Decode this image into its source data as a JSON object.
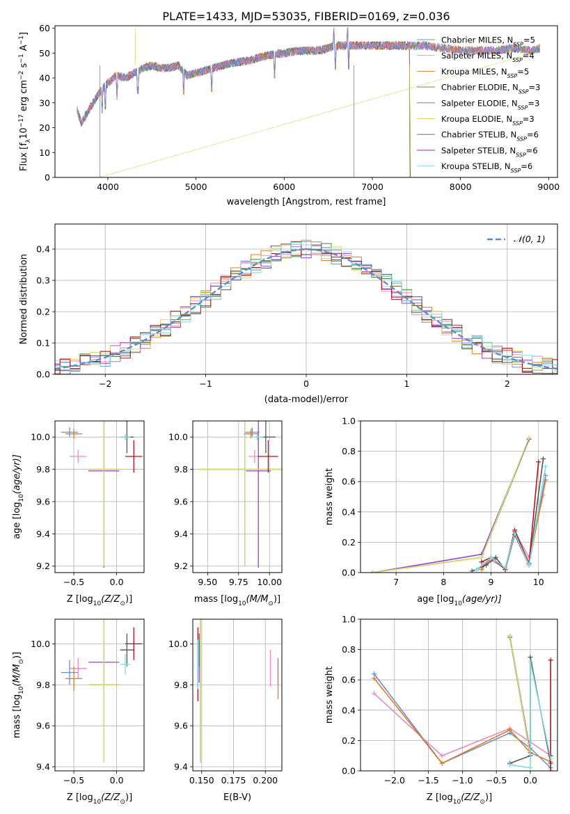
{
  "figure": {
    "title": "PLATE=1433, MJD=53035, FIBERID=0169, z=0.036"
  },
  "colors": {
    "Chabrier MILES": "#6b8fd6",
    "Salpeter MILES": "#e58ac4",
    "Kroupa MILES": "#e07b22",
    "Chabrier ELODIE": "#3a8a3a",
    "Salpeter ELODIE": "#a33bd1",
    "Kroupa ELODIE": "#cfe06a",
    "Chabrier STELIB": "#555555",
    "Salpeter STELIB": "#b0121d",
    "Kroupa STELIB": "#7fdbe0",
    "gaussian": "#5b8bd6"
  },
  "chart_data": [
    {
      "id": "spectrum",
      "type": "line",
      "xlabel": "wavelength [Angstrom, rest frame]",
      "ylabel": "Flux [f",
      "ylabel_sub": "λ",
      "ylabel_rest": "10",
      "ylabel_exp1": "−17",
      "ylabel_rest2": " erg cm",
      "ylabel_exp2": "−2",
      "ylabel_rest3": " s",
      "ylabel_exp3": "−1",
      "ylabel_rest4": " A",
      "ylabel_exp4": "−1",
      "ylabel_end": "]",
      "xlim": [
        3400,
        9100
      ],
      "ylim": [
        0,
        61
      ],
      "xticks": [
        "4000",
        "5000",
        "6000",
        "7000",
        "8000",
        "9000"
      ],
      "xtick_values": [
        4000,
        5000,
        6000,
        7000,
        8000,
        9000
      ],
      "yticks": [
        "0",
        "10",
        "20",
        "30",
        "40",
        "50",
        "60"
      ],
      "ytick_values": [
        0,
        10,
        20,
        30,
        40,
        50,
        60
      ],
      "continuum_x": [
        3650,
        3700,
        3800,
        3900,
        4000,
        4100,
        4200,
        4300,
        4400,
        4500,
        4600,
        4700,
        4800,
        4900,
        5000,
        5200,
        5400,
        5600,
        5800,
        6000,
        6200,
        6400,
        6600,
        6800,
        7000,
        7200,
        7400,
        7600,
        7800,
        8000,
        8200,
        8400,
        8600,
        8800,
        8900
      ],
      "continuum_y": [
        27,
        22,
        28,
        34,
        38,
        41,
        40,
        42,
        44,
        45,
        44,
        44,
        45,
        41,
        42,
        44,
        46,
        47,
        49,
        50,
        51,
        51,
        53,
        53,
        53,
        53,
        53,
        53,
        52,
        51,
        51,
        51,
        52,
        51,
        52
      ],
      "legend": [
        {
          "label": "Chabrier MILES",
          "sub": "5"
        },
        {
          "label": "Salpeter MILES",
          "sub": "4"
        },
        {
          "label": "Kroupa MILES",
          "sub": "5"
        },
        {
          "label": "Chabrier ELODIE",
          "sub": "3"
        },
        {
          "label": "Salpeter ELODIE",
          "sub": "3"
        },
        {
          "label": "Kroupa ELODIE",
          "sub": "3"
        },
        {
          "label": "Chabrier STELIB",
          "sub": "6"
        },
        {
          "label": "Salpeter STELIB",
          "sub": "6"
        },
        {
          "label": "Kroupa STELIB",
          "sub": "6"
        }
      ],
      "legend_prefix": "N",
      "legend_subscript": "SSP",
      "grid": false
    },
    {
      "id": "residual_hist",
      "type": "line",
      "xlabel": "(data-model)/error",
      "ylabel": "Normed distribution",
      "xlim": [
        -2.5,
        2.5
      ],
      "ylim": [
        0,
        0.48
      ],
      "xticks": [
        "−2",
        "−1",
        "0",
        "1",
        "2"
      ],
      "xtick_values": [
        -2,
        -1,
        0,
        1,
        2
      ],
      "yticks": [
        "0.0",
        "0.1",
        "0.2",
        "0.3",
        "0.4"
      ],
      "ytick_values": [
        0,
        0.1,
        0.2,
        0.3,
        0.4
      ],
      "legend": [
        "𝒩(0, 1)"
      ],
      "grid": true,
      "bin_width": 0.1
    },
    {
      "id": "age_vs_Z",
      "type": "scatter",
      "xlabel": "Z [log",
      "xlabel_sub": "10",
      "xlabel_end": "(Z/Z",
      "xlabel_tail": "⊙",
      "xlabel_close": ")]",
      "ylabel": "age  [log",
      "ylabel_sub": "10",
      "ylabel_end": "(age/yr)]",
      "xlim": [
        -0.72,
        0.32
      ],
      "ylim": [
        9.16,
        10.1
      ],
      "xticks": [
        "−0.5",
        "0.0"
      ],
      "xtick_values": [
        -0.5,
        0.0
      ],
      "yticks": [
        "9.2",
        "9.4",
        "9.6",
        "9.8",
        "10.0"
      ],
      "ytick_values": [
        9.2,
        9.4,
        9.6,
        9.8,
        10.0
      ],
      "points": [
        {
          "model": "Chabrier MILES",
          "x": -0.55,
          "xerr": 0.1,
          "y": 10.03,
          "yerr": 0.03
        },
        {
          "model": "Salpeter MILES",
          "x": -0.45,
          "xerr": 0.1,
          "y": 9.88,
          "yerr": 0.04
        },
        {
          "model": "Kroupa MILES",
          "x": -0.5,
          "xerr": 0.1,
          "y": 10.02,
          "yerr": 0.03
        },
        {
          "model": "Chabrier ELODIE",
          "x": -0.15,
          "xerr": 0.18,
          "y": 9.8,
          "yerr": 0.6
        },
        {
          "model": "Salpeter ELODIE",
          "x": -0.15,
          "xerr": 0.18,
          "y": 9.79,
          "yerr": 0.6
        },
        {
          "model": "Kroupa ELODIE",
          "x": -0.15,
          "xerr": 0.18,
          "y": 9.8,
          "yerr": 0.6
        },
        {
          "model": "Chabrier STELIB",
          "x": 0.12,
          "xerr": 0.08,
          "y": 10.0,
          "yerr": 0.1
        },
        {
          "model": "Salpeter STELIB",
          "x": 0.2,
          "xerr": 0.1,
          "y": 9.88,
          "yerr": 0.1
        },
        {
          "model": "Kroupa STELIB",
          "x": 0.1,
          "xerr": 0.06,
          "y": 10.0,
          "yerr": 0.02
        }
      ],
      "grid": true
    },
    {
      "id": "age_vs_mass",
      "type": "scatter",
      "xlabel": "mass [log",
      "xlabel_sub": "10",
      "xlabel_end": "(M/M",
      "xlabel_tail": "⊙",
      "xlabel_close": ")]",
      "xlim": [
        9.38,
        10.1
      ],
      "ylim": [
        9.16,
        10.1
      ],
      "xticks": [
        "9.50",
        "9.75",
        "10.00"
      ],
      "xtick_values": [
        9.5,
        9.75,
        10.0
      ],
      "yticks": [
        "9.2",
        "9.4",
        "9.6",
        "9.8",
        "10.0"
      ],
      "ytick_values": [
        9.2,
        9.4,
        9.6,
        9.8,
        10.0
      ],
      "points": [
        {
          "model": "Chabrier MILES",
          "x": 9.86,
          "xerr": 0.06,
          "y": 10.03,
          "yerr": 0.03
        },
        {
          "model": "Salpeter MILES",
          "x": 9.88,
          "xerr": 0.05,
          "y": 9.88,
          "yerr": 0.04
        },
        {
          "model": "Kroupa MILES",
          "x": 9.85,
          "xerr": 0.06,
          "y": 10.02,
          "yerr": 0.03
        },
        {
          "model": "Chabrier ELODIE",
          "x": 9.8,
          "xerr": 0.38,
          "y": 9.8,
          "yerr": 0.6
        },
        {
          "model": "Salpeter ELODIE",
          "x": 9.91,
          "xerr": 0.1,
          "y": 9.79,
          "yerr": 0.6
        },
        {
          "model": "Kroupa ELODIE",
          "x": 9.8,
          "xerr": 0.38,
          "y": 9.8,
          "yerr": 0.6
        },
        {
          "model": "Chabrier STELIB",
          "x": 9.97,
          "xerr": 0.08,
          "y": 10.0,
          "yerr": 0.1
        },
        {
          "model": "Salpeter STELIB",
          "x": 9.99,
          "xerr": 0.08,
          "y": 9.88,
          "yerr": 0.1
        },
        {
          "model": "Kroupa STELIB",
          "x": 9.9,
          "xerr": 0.05,
          "y": 10.0,
          "yerr": 0.02
        }
      ],
      "grid": true
    },
    {
      "id": "weight_vs_age",
      "type": "line",
      "xlabel": "age  [log",
      "xlabel_sub": "10",
      "xlabel_end": "(age/yr)]",
      "ylabel": "mass weight",
      "xlim": [
        6.25,
        10.4
      ],
      "ylim": [
        0,
        1.0
      ],
      "xticks": [
        "7",
        "8",
        "9",
        "10"
      ],
      "xtick_values": [
        7,
        8,
        9,
        10
      ],
      "yticks": [
        "0.0",
        "0.2",
        "0.4",
        "0.6",
        "0.8",
        "1.0"
      ],
      "ytick_values": [
        0,
        0.2,
        0.4,
        0.6,
        0.8,
        1.0
      ],
      "series": [
        {
          "name": "Chabrier MILES",
          "x": [
            8.7,
            9.0,
            9.3,
            9.5,
            9.8,
            10.15
          ],
          "y": [
            0.02,
            0.1,
            0.03,
            0.25,
            0.05,
            0.64
          ]
        },
        {
          "name": "Salpeter MILES",
          "x": [
            8.7,
            9.0,
            9.3,
            9.5,
            9.8,
            10.1
          ],
          "y": [
            0.02,
            0.08,
            0.03,
            0.27,
            0.1,
            0.51
          ]
        },
        {
          "name": "Kroupa MILES",
          "x": [
            8.8,
            9.0,
            9.3,
            9.5,
            9.8,
            10.15
          ],
          "y": [
            0.02,
            0.1,
            0.03,
            0.27,
            0.06,
            0.61
          ]
        },
        {
          "name": "Chabrier ELODIE",
          "x": [
            6.5,
            8.8,
            9.8
          ],
          "y": [
            0.0,
            0.1,
            0.88
          ]
        },
        {
          "name": "Salpeter ELODIE",
          "x": [
            6.5,
            8.8,
            9.8
          ],
          "y": [
            0.0,
            0.12,
            0.88
          ]
        },
        {
          "name": "Kroupa ELODIE",
          "x": [
            6.5,
            8.8,
            9.8
          ],
          "y": [
            0.0,
            0.1,
            0.89
          ]
        },
        {
          "name": "Chabrier STELIB",
          "x": [
            8.6,
            8.9,
            9.1,
            9.3,
            9.5,
            9.8,
            10.1
          ],
          "y": [
            0.01,
            0.05,
            0.1,
            0.02,
            0.25,
            0.05,
            0.75
          ]
        },
        {
          "name": "Salpeter STELIB",
          "x": [
            8.8,
            9.0,
            9.3,
            9.5,
            9.8,
            10.0
          ],
          "y": [
            0.07,
            0.1,
            0.02,
            0.28,
            0.06,
            0.73
          ]
        },
        {
          "name": "Kroupa STELIB",
          "x": [
            8.7,
            9.0,
            9.3,
            9.5,
            9.8,
            10.15
          ],
          "y": [
            0.02,
            0.1,
            0.03,
            0.26,
            0.05,
            0.7
          ]
        }
      ],
      "grid": true
    },
    {
      "id": "mass_vs_Z",
      "type": "scatter",
      "xlabel": "Z [log",
      "xlabel_sub": "10",
      "xlabel_end": "(Z/Z",
      "xlabel_tail": "⊙",
      "xlabel_close": ")]",
      "ylabel": "mass [log",
      "ylabel_sub": "10",
      "ylabel_end": "(M/M",
      "ylabel_tail": "⊙",
      "ylabel_close": ")]",
      "xlim": [
        -0.72,
        0.32
      ],
      "ylim": [
        9.38,
        10.12
      ],
      "xticks": [
        "−0.5",
        "0.0"
      ],
      "xtick_values": [
        -0.5,
        0.0
      ],
      "yticks": [
        "9.4",
        "9.6",
        "9.8",
        "10.0"
      ],
      "ytick_values": [
        9.4,
        9.6,
        9.8,
        10.0
      ],
      "points": [
        {
          "model": "Chabrier MILES",
          "x": -0.55,
          "xerr": 0.1,
          "y": 9.86,
          "yerr": 0.06
        },
        {
          "model": "Salpeter MILES",
          "x": -0.45,
          "xerr": 0.1,
          "y": 9.88,
          "yerr": 0.05
        },
        {
          "model": "Kroupa MILES",
          "x": -0.5,
          "xerr": 0.1,
          "y": 9.83,
          "yerr": 0.06
        },
        {
          "model": "Chabrier ELODIE",
          "x": -0.15,
          "xerr": 0.18,
          "y": 9.8,
          "yerr": 0.38
        },
        {
          "model": "Salpeter ELODIE",
          "x": -0.15,
          "xerr": 0.18,
          "y": 9.91,
          "yerr": 0.1
        },
        {
          "model": "Kroupa ELODIE",
          "x": -0.15,
          "xerr": 0.18,
          "y": 9.8,
          "yerr": 0.38
        },
        {
          "model": "Chabrier STELIB",
          "x": 0.12,
          "xerr": 0.08,
          "y": 9.97,
          "yerr": 0.08
        },
        {
          "model": "Salpeter STELIB",
          "x": 0.2,
          "xerr": 0.1,
          "y": 10.0,
          "yerr": 0.08
        },
        {
          "model": "Kroupa STELIB",
          "x": 0.1,
          "xerr": 0.06,
          "y": 9.9,
          "yerr": 0.05
        }
      ],
      "grid": true
    },
    {
      "id": "mass_vs_ebv",
      "type": "scatter",
      "xlabel": "E(B-V)",
      "xlim": [
        0.143,
        0.213
      ],
      "ylim": [
        9.38,
        10.12
      ],
      "xticks": [
        "0.150",
        "0.175",
        "0.200"
      ],
      "xtick_values": [
        0.15,
        0.175,
        0.2
      ],
      "yticks": [
        "9.4",
        "9.6",
        "9.8",
        "10.0"
      ],
      "ytick_values": [
        9.4,
        9.6,
        9.8,
        10.0
      ],
      "points": [
        {
          "model": "Chabrier MILES",
          "x": 0.21,
          "xerr": 0,
          "y": 9.86,
          "yerr": 0.06
        },
        {
          "model": "Salpeter MILES",
          "x": 0.204,
          "xerr": 0,
          "y": 9.88,
          "yerr": 0.09
        },
        {
          "model": "Kroupa MILES",
          "x": 0.21,
          "xerr": 0,
          "y": 9.83,
          "yerr": 0.1
        },
        {
          "model": "Chabrier ELODIE",
          "x": 0.149,
          "xerr": 0,
          "y": 9.8,
          "yerr": 0.38
        },
        {
          "model": "Salpeter ELODIE",
          "x": 0.148,
          "xerr": 0,
          "y": 9.91,
          "yerr": 0.1
        },
        {
          "model": "Kroupa ELODIE",
          "x": 0.149,
          "xerr": 0,
          "y": 9.8,
          "yerr": 0.38
        },
        {
          "model": "Chabrier STELIB",
          "x": 0.148,
          "xerr": 0,
          "y": 9.97,
          "yerr": 0.08
        },
        {
          "model": "Salpeter STELIB",
          "x": 0.147,
          "xerr": 0,
          "y": 9.9,
          "yerr": 0.18
        },
        {
          "model": "Kroupa STELIB",
          "x": 0.147,
          "xerr": 0,
          "y": 9.9,
          "yerr": 0.12
        }
      ],
      "grid": true
    },
    {
      "id": "weight_vs_Z",
      "type": "line",
      "xlabel": "Z [log",
      "xlabel_sub": "10",
      "xlabel_end": "(Z/Z",
      "xlabel_tail": "⊙",
      "xlabel_close": ")]",
      "ylabel": "mass weight",
      "xlim": [
        -2.5,
        0.4
      ],
      "ylim": [
        0,
        1.0
      ],
      "xticks": [
        "−2.0",
        "−1.5",
        "−1.0",
        "−0.5",
        "0.0"
      ],
      "xtick_values": [
        -2.0,
        -1.5,
        -1.0,
        -0.5,
        0.0
      ],
      "yticks": [
        "0.0",
        "0.2",
        "0.4",
        "0.6",
        "0.8",
        "1.0"
      ],
      "ytick_values": [
        0,
        0.2,
        0.4,
        0.6,
        0.8,
        1.0
      ],
      "series": [
        {
          "name": "Chabrier MILES",
          "x": [
            -2.3,
            -1.3,
            -0.3,
            0.0,
            0.3
          ],
          "y": [
            0.64,
            0.05,
            0.25,
            0.15,
            0.02
          ]
        },
        {
          "name": "Salpeter MILES",
          "x": [
            -2.3,
            -1.3,
            -0.3,
            0.3
          ],
          "y": [
            0.51,
            0.1,
            0.28,
            0.1
          ]
        },
        {
          "name": "Kroupa MILES",
          "x": [
            -2.3,
            -1.3,
            -0.3,
            0.0,
            0.3
          ],
          "y": [
            0.61,
            0.05,
            0.27,
            0.12,
            0.06
          ]
        },
        {
          "name": "Chabrier ELODIE",
          "x": [
            -0.3,
            0.0
          ],
          "y": [
            0.88,
            0.1
          ]
        },
        {
          "name": "Salpeter ELODIE",
          "x": [
            -0.3,
            0.0
          ],
          "y": [
            0.89,
            0.12
          ]
        },
        {
          "name": "Kroupa ELODIE",
          "x": [
            -0.3,
            0.0
          ],
          "y": [
            0.89,
            0.1
          ]
        },
        {
          "name": "Chabrier STELIB",
          "x": [
            -0.3,
            0.0,
            0.0,
            0.3
          ],
          "y": [
            0.05,
            0.1,
            0.75,
            0.05
          ]
        },
        {
          "name": "Salpeter STELIB",
          "x": [
            0.3,
            0.3,
            0.3
          ],
          "y": [
            0.0,
            0.73,
            0.1
          ]
        },
        {
          "name": "Kroupa STELIB",
          "x": [
            -0.3,
            0.0,
            0.0,
            0.3
          ],
          "y": [
            0.04,
            0.02,
            0.72,
            0.08
          ]
        }
      ],
      "grid": true
    }
  ]
}
